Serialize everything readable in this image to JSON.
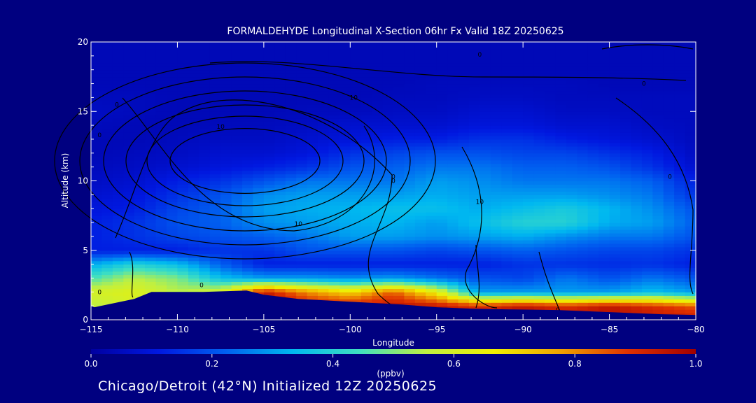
{
  "footer": "Chicago/Detroit (42°N) Initialized 12Z 20250625",
  "chart_data": {
    "type": "heatmap",
    "title": "FORMALDEHYDE Longitudinal X-Section 06hr  Fx Valid 18Z 20250625",
    "xlabel": "Longitude",
    "ylabel": "Altitude (km)",
    "xlim": [
      -115,
      -80
    ],
    "ylim": [
      0,
      20
    ],
    "xticks": [
      "-115",
      "-110",
      "-105",
      "-100",
      "-95",
      "-90",
      "-85",
      "-80"
    ],
    "yticks": [
      "0",
      "5",
      "10",
      "15",
      "20"
    ],
    "colorbar": {
      "label": "(ppbv)",
      "range": [
        0.0,
        1.0
      ],
      "ticks": [
        "0.0",
        "0.2",
        "0.4",
        "0.6",
        "0.8",
        "1.0"
      ],
      "colors": [
        "#0000a0",
        "#0018e0",
        "#0060f0",
        "#00b8f0",
        "#40e0c0",
        "#c0f040",
        "#f0f000",
        "#f0a000",
        "#e03000",
        "#a00000"
      ]
    },
    "x": [
      -115,
      -112.5,
      -110,
      -107.5,
      -105,
      -102.5,
      -100,
      -97.5,
      -95,
      -92.5,
      -90,
      -87.5,
      -85,
      -82.5,
      -80
    ],
    "y": [
      0,
      1,
      2,
      3,
      4,
      5,
      6,
      7,
      8,
      9,
      10,
      11,
      12,
      13,
      14,
      15,
      16,
      17,
      18,
      19,
      20
    ],
    "z": [
      [
        0.95,
        0.95,
        0.5,
        0.5,
        0.5,
        0.95,
        0.95,
        0.95,
        0.95,
        0.95,
        0.95,
        0.95,
        0.95,
        0.95,
        0.95
      ],
      [
        0.55,
        0.6,
        0.5,
        0.6,
        0.95,
        0.95,
        0.95,
        0.95,
        0.95,
        0.9,
        0.95,
        0.9,
        0.95,
        0.9,
        0.85
      ],
      [
        0.6,
        0.62,
        0.55,
        0.6,
        0.95,
        0.8,
        0.7,
        0.85,
        0.65,
        0.3,
        0.3,
        0.3,
        0.3,
        0.35,
        0.3
      ],
      [
        0.45,
        0.55,
        0.5,
        0.35,
        0.3,
        0.3,
        0.28,
        0.3,
        0.25,
        0.2,
        0.18,
        0.25,
        0.2,
        0.25,
        0.2
      ],
      [
        0.32,
        0.4,
        0.35,
        0.22,
        0.12,
        0.12,
        0.12,
        0.12,
        0.12,
        0.12,
        0.15,
        0.15,
        0.14,
        0.15,
        0.12
      ],
      [
        0.12,
        0.12,
        0.12,
        0.15,
        0.15,
        0.2,
        0.2,
        0.2,
        0.18,
        0.2,
        0.22,
        0.2,
        0.18,
        0.18,
        0.15
      ],
      [
        0.12,
        0.15,
        0.18,
        0.2,
        0.22,
        0.25,
        0.3,
        0.3,
        0.28,
        0.3,
        0.32,
        0.28,
        0.25,
        0.25,
        0.2
      ],
      [
        0.12,
        0.15,
        0.2,
        0.22,
        0.28,
        0.3,
        0.32,
        0.33,
        0.3,
        0.35,
        0.4,
        0.4,
        0.32,
        0.3,
        0.22
      ],
      [
        0.1,
        0.12,
        0.18,
        0.22,
        0.3,
        0.32,
        0.33,
        0.35,
        0.35,
        0.32,
        0.35,
        0.38,
        0.33,
        0.28,
        0.2
      ],
      [
        0.08,
        0.1,
        0.15,
        0.2,
        0.28,
        0.3,
        0.3,
        0.3,
        0.32,
        0.3,
        0.3,
        0.3,
        0.28,
        0.25,
        0.15
      ],
      [
        0.06,
        0.08,
        0.12,
        0.15,
        0.2,
        0.25,
        0.25,
        0.25,
        0.3,
        0.28,
        0.25,
        0.25,
        0.25,
        0.22,
        0.12
      ],
      [
        0.05,
        0.06,
        0.08,
        0.1,
        0.12,
        0.15,
        0.2,
        0.22,
        0.25,
        0.25,
        0.22,
        0.22,
        0.2,
        0.15,
        0.08
      ],
      [
        0.04,
        0.05,
        0.06,
        0.08,
        0.08,
        0.1,
        0.15,
        0.18,
        0.2,
        0.2,
        0.18,
        0.18,
        0.15,
        0.12,
        0.06
      ],
      [
        0.04,
        0.04,
        0.05,
        0.06,
        0.06,
        0.08,
        0.1,
        0.12,
        0.12,
        0.15,
        0.15,
        0.12,
        0.1,
        0.08,
        0.05
      ],
      [
        0.05,
        0.04,
        0.04,
        0.05,
        0.05,
        0.06,
        0.08,
        0.08,
        0.08,
        0.1,
        0.1,
        0.08,
        0.08,
        0.06,
        0.05
      ],
      [
        0.06,
        0.05,
        0.04,
        0.04,
        0.04,
        0.05,
        0.05,
        0.06,
        0.06,
        0.08,
        0.08,
        0.06,
        0.06,
        0.05,
        0.05
      ],
      [
        0.05,
        0.05,
        0.04,
        0.04,
        0.04,
        0.04,
        0.04,
        0.05,
        0.05,
        0.06,
        0.06,
        0.05,
        0.05,
        0.05,
        0.05
      ],
      [
        0.04,
        0.04,
        0.04,
        0.04,
        0.04,
        0.04,
        0.04,
        0.04,
        0.05,
        0.05,
        0.05,
        0.05,
        0.04,
        0.04,
        0.04
      ],
      [
        0.04,
        0.04,
        0.04,
        0.04,
        0.04,
        0.04,
        0.04,
        0.04,
        0.04,
        0.04,
        0.04,
        0.04,
        0.04,
        0.04,
        0.04
      ],
      [
        0.04,
        0.04,
        0.04,
        0.04,
        0.04,
        0.04,
        0.04,
        0.04,
        0.04,
        0.04,
        0.04,
        0.04,
        0.04,
        0.04,
        0.04
      ],
      [
        0.04,
        0.04,
        0.04,
        0.04,
        0.04,
        0.04,
        0.04,
        0.04,
        0.04,
        0.04,
        0.04,
        0.04,
        0.04,
        0.04,
        0.04
      ]
    ],
    "terrain": {
      "x": [
        -115,
        -114.8,
        -112.5,
        -111.5,
        -110,
        -108.5,
        -106,
        -105,
        -103,
        -100,
        -97,
        -95,
        -93,
        -91,
        -88,
        -86,
        -84,
        -82,
        -80
      ],
      "y": [
        1.0,
        0.9,
        1.5,
        2.0,
        2.0,
        2.0,
        2.1,
        1.8,
        1.5,
        1.3,
        1.1,
        0.9,
        0.8,
        0.75,
        0.7,
        0.6,
        0.5,
        0.4,
        0.35
      ]
    },
    "contour_labels": [
      {
        "text": "0",
        "x": -114.5,
        "y": 2.0
      },
      {
        "text": "0",
        "x": -108.6,
        "y": 2.5
      },
      {
        "text": "0",
        "x": -113.5,
        "y": 15.5
      },
      {
        "text": "0",
        "x": -114.5,
        "y": 13.3
      },
      {
        "text": "10",
        "x": -107.5,
        "y": 13.9
      },
      {
        "text": "10",
        "x": -103,
        "y": 6.9
      },
      {
        "text": "10",
        "x": -99.8,
        "y": 16.0
      },
      {
        "text": "0",
        "x": -97.5,
        "y": 10.3
      },
      {
        "text": "0",
        "x": -97.5,
        "y": 10.0
      },
      {
        "text": "10",
        "x": -92.5,
        "y": 8.5
      },
      {
        "text": "0",
        "x": -92.5,
        "y": 19.1
      },
      {
        "text": "0",
        "x": -83,
        "y": 17.0
      },
      {
        "text": "0",
        "x": -81.5,
        "y": 10.3
      },
      {
        "text": "0",
        "x": -88,
        "y": 0.7
      }
    ]
  }
}
